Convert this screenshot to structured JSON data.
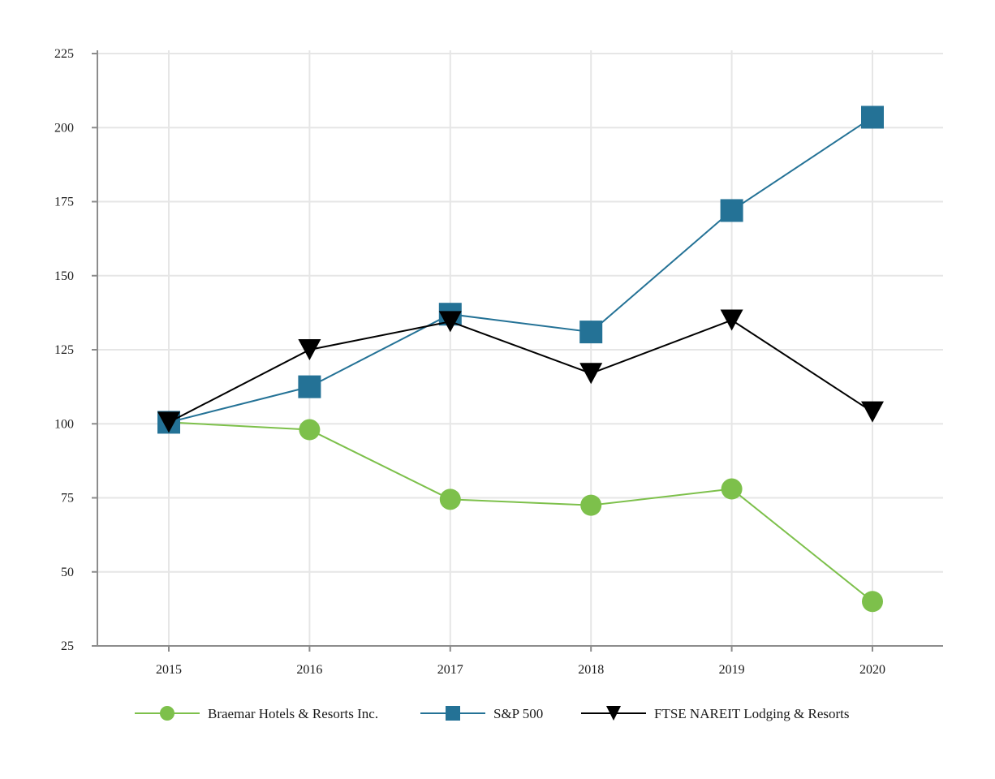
{
  "chart_data": {
    "type": "line",
    "title": "",
    "xlabel": "",
    "ylabel": "",
    "categories": [
      "2015",
      "2016",
      "2017",
      "2018",
      "2019",
      "2020"
    ],
    "ylim": [
      25,
      225
    ],
    "yticks": [
      "225",
      "200",
      "175",
      "150",
      "125",
      "100",
      "75",
      "50",
      "25"
    ],
    "grid": true,
    "legend_position": "bottom",
    "series": [
      {
        "name": "Braemar Hotels & Resorts Inc.",
        "marker": "circle",
        "color": "#7dc04b",
        "values": [
          100.5,
          98,
          74.5,
          72.5,
          78,
          40
        ]
      },
      {
        "name": "S&P 500",
        "marker": "square",
        "color": "#247296",
        "values": [
          100.5,
          112.5,
          137,
          131,
          172,
          203.5
        ]
      },
      {
        "name": "FTSE NAREIT Lodging & Resorts",
        "marker": "triangle-down",
        "color": "#000000",
        "values": [
          100.5,
          125,
          134.5,
          117,
          135,
          104
        ]
      }
    ]
  }
}
